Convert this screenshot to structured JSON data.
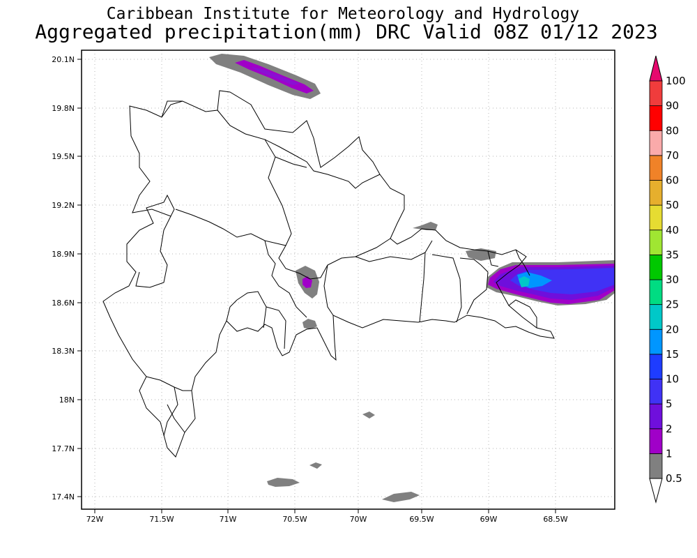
{
  "header": {
    "institute": "Caribbean Institute for Meteorology and Hydrology",
    "product": "Aggregated precipitation(mm) DRC Valid 08Z 01/12 2023"
  },
  "map": {
    "lon_range": [
      -72.05,
      -68.05
    ],
    "lat_range": [
      17.35,
      20.15
    ],
    "lat_ticks": [
      "20.1N",
      "19.8N",
      "19.5N",
      "19.2N",
      "18.9N",
      "18.6N",
      "18.3N",
      "18N",
      "17.7N",
      "17.4N"
    ],
    "lon_ticks": [
      "72W",
      "71.5W",
      "71W",
      "70.5W",
      "70W",
      "69.5W",
      "69W",
      "68.5W"
    ],
    "gridlines": "dotted"
  },
  "colorbar": {
    "levels": [
      "0.5",
      "1",
      "2",
      "5",
      "10",
      "15",
      "20",
      "25",
      "30",
      "35",
      "40",
      "50",
      "60",
      "70",
      "80",
      "90",
      "100"
    ],
    "colors": [
      "#ffffff",
      "#808080",
      "#a000c8",
      "#6f0fdc",
      "#4032f5",
      "#1e3cff",
      "#0096ff",
      "#00c8c8",
      "#00dc82",
      "#00c800",
      "#a0e632",
      "#e6dc32",
      "#e6af2d",
      "#f08228",
      "#faaaaa",
      "#ff0000",
      "#f03c3c",
      "#e6096e"
    ]
  }
}
